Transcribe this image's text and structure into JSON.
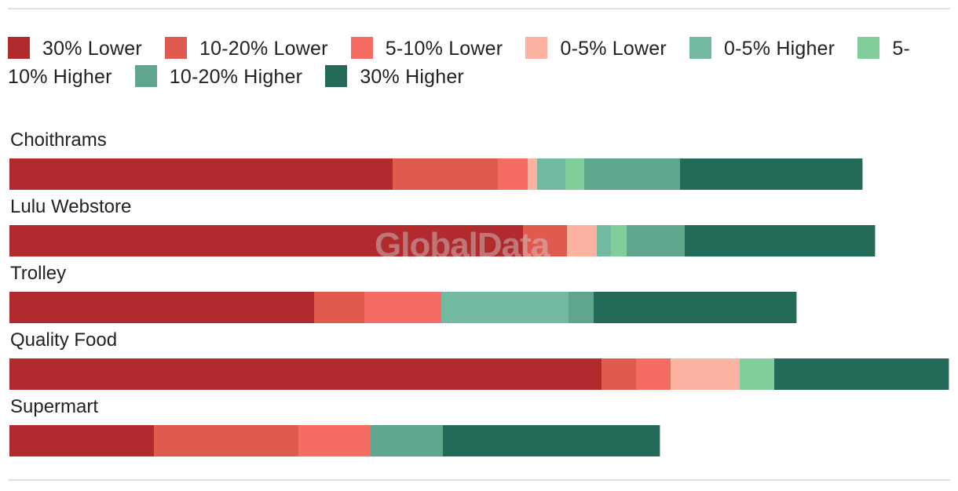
{
  "watermark": "GlobalData",
  "chart_data": {
    "type": "bar",
    "orientation": "horizontal",
    "stacked": true,
    "legend_position": "top",
    "categories": [
      "Choithrams",
      "Lulu Webstore",
      "Trolley",
      "Quality Food",
      "Supermart"
    ],
    "series": [
      {
        "name": "30% Lower",
        "color": "#b02a2e",
        "values": [
          24.4,
          32.7,
          19.4,
          37.7,
          9.2
        ]
      },
      {
        "name": "10-20% Lower",
        "color": "#e05a4e",
        "values": [
          6.7,
          2.8,
          3.2,
          2.2,
          9.2
        ]
      },
      {
        "name": "5-10% Lower",
        "color": "#f56d62",
        "values": [
          1.9,
          0,
          4.9,
          2.2,
          4.6
        ]
      },
      {
        "name": "0-5% Lower",
        "color": "#fcb3a2",
        "values": [
          0.6,
          1.9,
          0,
          4.4,
          0
        ]
      },
      {
        "name": "0-5% Higher",
        "color": "#72b9a0",
        "values": [
          1.8,
          0.9,
          8.1,
          0,
          0
        ]
      },
      {
        "name": "5-10% Higher",
        "color": "#82ce9a",
        "values": [
          1.2,
          1.0,
          0,
          2.2,
          0
        ]
      },
      {
        "name": "10-20% Higher",
        "color": "#5fa68c",
        "values": [
          6.1,
          3.7,
          1.6,
          0,
          4.6
        ]
      },
      {
        "name": "30% Higher",
        "color": "#236b58",
        "values": [
          11.6,
          12.1,
          12.9,
          11.1,
          13.8
        ]
      }
    ]
  }
}
